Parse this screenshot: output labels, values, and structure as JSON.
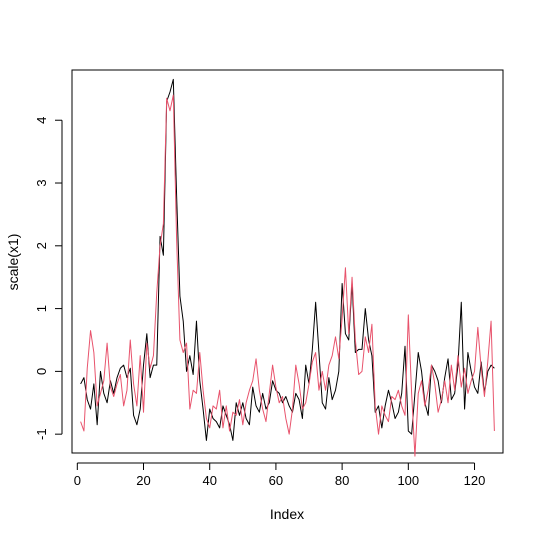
{
  "chart_data": {
    "type": "line",
    "title": "",
    "xlabel": "Index",
    "ylabel": "scale(x1)",
    "xlim": [
      1,
      126
    ],
    "ylim": [
      -1.3,
      4.8
    ],
    "x_ticks": [
      0,
      20,
      40,
      60,
      80,
      100,
      120
    ],
    "y_ticks": [
      -1,
      0,
      1,
      2,
      3,
      4
    ],
    "grid": false,
    "legend": "none",
    "series": [
      {
        "color": "#000000",
        "values": [
          -0.2,
          -0.1,
          -0.45,
          -0.6,
          -0.2,
          -0.85,
          0.0,
          -0.35,
          -0.5,
          -0.15,
          -0.35,
          -0.1,
          0.05,
          0.1,
          -0.1,
          0.05,
          -0.7,
          -0.85,
          -0.6,
          0.1,
          0.6,
          -0.1,
          0.1,
          0.1,
          2.15,
          1.85,
          4.3,
          4.45,
          4.65,
          2.8,
          1.2,
          0.8,
          0.0,
          0.25,
          -0.05,
          0.8,
          -0.15,
          -0.6,
          -1.1,
          -0.6,
          -0.75,
          -0.8,
          -0.9,
          -0.55,
          -0.7,
          -0.85,
          -1.1,
          -0.5,
          -0.7,
          -0.5,
          -0.75,
          -0.85,
          -0.25,
          -0.55,
          -0.65,
          -0.35,
          -0.6,
          -0.5,
          -0.15,
          -0.3,
          -0.35,
          -0.5,
          -0.4,
          -0.55,
          -0.65,
          -0.35,
          -0.45,
          -0.75,
          0.1,
          -0.2,
          0.35,
          1.1,
          0.3,
          -0.5,
          -0.6,
          -0.1,
          -0.45,
          -0.3,
          0.0,
          1.4,
          0.6,
          0.5,
          1.4,
          0.3,
          0.35,
          0.35,
          1.0,
          0.5,
          0.25,
          -0.65,
          -0.55,
          -0.9,
          -0.55,
          -0.3,
          -0.5,
          -0.75,
          -0.65,
          -0.35,
          0.4,
          -0.95,
          -1.0,
          -0.35,
          0.3,
          0.0,
          -0.5,
          -0.7,
          0.1,
          0.0,
          -0.15,
          -0.5,
          -0.1,
          0.2,
          -0.45,
          -0.35,
          0.1,
          1.1,
          -0.6,
          0.3,
          0.0,
          -0.25,
          -0.35,
          0.15,
          -0.35,
          0.0,
          0.1,
          0.05
        ]
      },
      {
        "color": "#e8536c",
        "values": [
          -0.8,
          -0.95,
          0.05,
          0.65,
          0.3,
          -0.55,
          -0.35,
          -0.15,
          0.45,
          -0.25,
          -0.4,
          -0.2,
          -0.05,
          -0.55,
          -0.3,
          0.5,
          -0.2,
          -0.55,
          0.25,
          -0.65,
          0.45,
          0.05,
          0.25,
          1.25,
          2.0,
          2.35,
          4.35,
          4.15,
          4.4,
          2.1,
          0.5,
          0.3,
          0.45,
          -0.6,
          -0.3,
          -0.35,
          0.3,
          -0.3,
          -0.75,
          -0.9,
          -0.55,
          -0.6,
          -0.3,
          -0.9,
          -0.55,
          -0.95,
          -0.65,
          -0.7,
          -0.45,
          -0.85,
          -0.5,
          -0.3,
          -0.15,
          0.2,
          -0.3,
          -0.6,
          -0.8,
          -0.35,
          0.1,
          -0.25,
          -0.5,
          -0.4,
          -0.75,
          -1.0,
          -0.6,
          0.1,
          -0.2,
          -0.6,
          -0.5,
          -0.2,
          0.15,
          0.3,
          -0.3,
          0.0,
          -0.3,
          0.1,
          0.25,
          0.55,
          0.2,
          0.85,
          1.65,
          0.6,
          1.5,
          0.5,
          -0.05,
          0.0,
          0.55,
          0.3,
          0.75,
          -0.55,
          -1.0,
          -0.55,
          -0.7,
          -0.8,
          -0.4,
          -0.45,
          -0.3,
          -0.55,
          -0.7,
          0.9,
          -0.35,
          -1.35,
          -0.35,
          -0.15,
          -0.55,
          -0.3,
          0.1,
          -0.2,
          -0.65,
          -0.45,
          -0.15,
          -0.5,
          0.1,
          -0.3,
          0.25,
          -0.25,
          0.05,
          -0.35,
          -0.15,
          0.0,
          0.7,
          0.05,
          -0.4,
          0.15,
          0.8,
          -0.95
        ]
      }
    ]
  }
}
